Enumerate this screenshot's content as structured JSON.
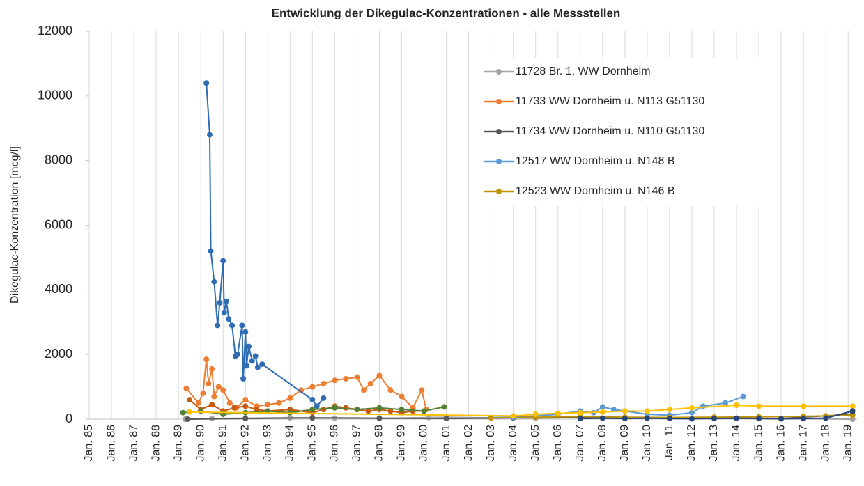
{
  "chart_data": {
    "type": "line",
    "title": "Entwicklung der Dikegulac-Konzentrationen  - alle Messstellen",
    "y_label": "Dikegulac-Konzentration [mcg/l]",
    "xlim": [
      1985,
      2019.4
    ],
    "xticks": [
      {
        "value": 1985,
        "label": "Jan. 85"
      },
      {
        "value": 1986,
        "label": "Jan. 86"
      },
      {
        "value": 1987,
        "label": "Jan. 87"
      },
      {
        "value": 1988,
        "label": "Jan. 88"
      },
      {
        "value": 1989,
        "label": "Jan. 89"
      },
      {
        "value": 1990,
        "label": "Jan. 90"
      },
      {
        "value": 1991,
        "label": "Jan. 91"
      },
      {
        "value": 1992,
        "label": "Jan. 92"
      },
      {
        "value": 1993,
        "label": "Jan. 93"
      },
      {
        "value": 1994,
        "label": "Jan. 94"
      },
      {
        "value": 1995,
        "label": "Jan. 95"
      },
      {
        "value": 1996,
        "label": "Jan. 96"
      },
      {
        "value": 1997,
        "label": "Jan. 97"
      },
      {
        "value": 1998,
        "label": "Jan. 98"
      },
      {
        "value": 1999,
        "label": "Jan. 99"
      },
      {
        "value": 2000,
        "label": "Jan. 00"
      },
      {
        "value": 2001,
        "label": "Jan. 01"
      },
      {
        "value": 2002,
        "label": "Jan. 02"
      },
      {
        "value": 2003,
        "label": "Jan. 03"
      },
      {
        "value": 2004,
        "label": "Jan. 04"
      },
      {
        "value": 2005,
        "label": "Jan. 05"
      },
      {
        "value": 2006,
        "label": "Jan. 06"
      },
      {
        "value": 2007,
        "label": "Jan. 07"
      },
      {
        "value": 2008,
        "label": "Jan. 08"
      },
      {
        "value": 2009,
        "label": "Jan. 09"
      },
      {
        "value": 2010,
        "label": "Jan. 10"
      },
      {
        "value": 2011,
        "label": "Jan. 11"
      },
      {
        "value": 2012,
        "label": "Jan. 12"
      },
      {
        "value": 2013,
        "label": "Jan. 13"
      },
      {
        "value": 2014,
        "label": "Jan. 14"
      },
      {
        "value": 2015,
        "label": "Jan. 15"
      },
      {
        "value": 2016,
        "label": "Jan. 16"
      },
      {
        "value": 2017,
        "label": "Jan. 17"
      },
      {
        "value": 2018,
        "label": "Jan. 18"
      },
      {
        "value": 2019,
        "label": "Jan. 19"
      }
    ],
    "ylim": [
      0,
      12000
    ],
    "yticks": [
      0,
      2000,
      4000,
      6000,
      8000,
      10000,
      12000
    ],
    "xgrid": true,
    "ygrid": false,
    "legend_position": "upper right",
    "series": [
      {
        "name": "11728 Br. 1, WW Dornheim",
        "color": "#a5a5a5",
        "x": [
          1989.3,
          1990.5,
          1992,
          1994,
          1996,
          1998,
          2000.2,
          2001,
          2003,
          2005,
          2007,
          2009,
          2011,
          2013,
          2015,
          2017,
          2019.2
        ],
        "values": [
          0,
          20,
          30,
          40,
          30,
          20,
          50,
          60,
          40,
          30,
          50,
          40,
          30,
          20,
          20,
          10,
          0
        ]
      },
      {
        "name": "11733 WW Dornheim u. N113 G51130",
        "color": "#ed7d31",
        "x": [
          1989.35,
          1989.9,
          1990.1,
          1990.25,
          1990.35,
          1990.5,
          1990.6,
          1990.8,
          1991,
          1991.3,
          1991.6,
          1992,
          1992.5,
          1993,
          1993.5,
          1994,
          1994.5,
          1995,
          1995.5,
          1996,
          1996.5,
          1997,
          1997.3,
          1997.6,
          1998,
          1998.5,
          1999,
          1999.5,
          1999.9,
          2000.1
        ],
        "values": [
          950,
          500,
          800,
          1850,
          1100,
          1550,
          700,
          1000,
          900,
          500,
          350,
          600,
          400,
          450,
          500,
          650,
          900,
          1000,
          1100,
          1200,
          1250,
          1300,
          900,
          1100,
          1350,
          900,
          700,
          350,
          900,
          300
        ]
      },
      {
        "name": "11734 WW Dornheim u. N110 G51130",
        "color": "#595959",
        "x": [
          1989.4,
          1992,
          1995,
          1998,
          2001,
          2004,
          2007,
          2010,
          2013,
          2016,
          2019.2
        ],
        "values": [
          0,
          20,
          40,
          30,
          20,
          40,
          50,
          40,
          30,
          20,
          150
        ]
      },
      {
        "name": "12517 WW Dornheim u. N148 B",
        "color": "#5b9bd5",
        "x": [
          2003,
          2004,
          2005,
          2006,
          2007,
          2007.6,
          2008,
          2008.5,
          2009,
          2010,
          2011,
          2012,
          2012.5,
          2013.5,
          2014.3
        ],
        "values": [
          50,
          60,
          100,
          150,
          250,
          200,
          380,
          300,
          250,
          150,
          120,
          200,
          400,
          500,
          700
        ]
      },
      {
        "name": "12523 WW Dornheim u. N146 B",
        "color": "#bf9000",
        "x": [
          2003,
          2005,
          2007,
          2009,
          2011,
          2013,
          2015,
          2017,
          2018,
          2019.2
        ],
        "values": [
          40,
          60,
          80,
          60,
          50,
          60,
          70,
          90,
          100,
          120
        ]
      },
      {
        "color": "#2e6db4",
        "x": [
          1990.25,
          1990.4,
          1990.45,
          1990.6,
          1990.75,
          1990.85,
          1991,
          1991.05,
          1991.15,
          1991.25,
          1991.4,
          1991.55,
          1991.65,
          1991.85,
          1991.9,
          1992,
          1992.05,
          1992.15,
          1992.3,
          1992.45,
          1992.55,
          1992.75,
          1995,
          1995.2,
          1995.5
        ],
        "values": [
          10400,
          8800,
          5200,
          4250,
          2900,
          3600,
          4900,
          3300,
          3650,
          3100,
          2900,
          1950,
          2000,
          2900,
          1250,
          2700,
          1650,
          2250,
          1800,
          1950,
          1600,
          1700,
          600,
          400,
          650
        ]
      },
      {
        "color": "#c55a11",
        "x": [
          1989.5,
          1990,
          1990.5,
          1991,
          1991.5,
          1992,
          1992.5,
          1993,
          1994,
          1995,
          1995.5,
          1996,
          1996.5,
          1997,
          1997.5,
          1998,
          1998.5,
          1999,
          1999.5,
          2000
        ],
        "values": [
          600,
          300,
          450,
          250,
          350,
          400,
          300,
          250,
          300,
          200,
          300,
          400,
          350,
          300,
          250,
          300,
          250,
          200,
          250,
          250
        ]
      },
      {
        "color": "#548235",
        "x": [
          1989.2,
          1990,
          1991,
          1992,
          1993,
          1994,
          1995,
          1996,
          1997,
          1998,
          1999,
          2000,
          2000.9
        ],
        "values": [
          200,
          250,
          150,
          200,
          250,
          200,
          300,
          350,
          300,
          350,
          300,
          250,
          380
        ]
      },
      {
        "color": "#ffc000",
        "x": [
          1989.5,
          2004,
          2005,
          2006,
          2007,
          2008,
          2009,
          2010,
          2011,
          2012,
          2014,
          2015,
          2017,
          2019.2
        ],
        "values": [
          220,
          100,
          150,
          180,
          200,
          220,
          250,
          250,
          300,
          350,
          430,
          400,
          400,
          400
        ]
      },
      {
        "color": "#264478",
        "x": [
          2007,
          2008,
          2009,
          2010,
          2011,
          2012,
          2013,
          2014,
          2015,
          2016,
          2017,
          2018,
          2019.2
        ],
        "values": [
          20,
          30,
          20,
          30,
          20,
          10,
          20,
          30,
          20,
          10,
          20,
          30,
          250
        ]
      }
    ]
  }
}
